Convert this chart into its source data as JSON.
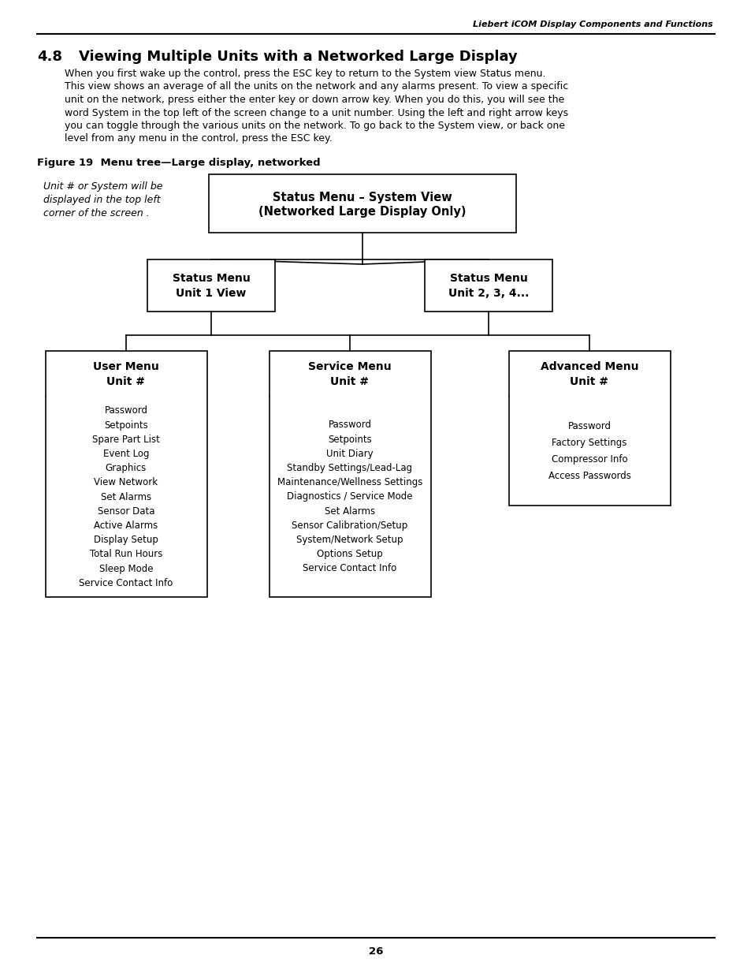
{
  "page_title_italic": "Liebert iCOM Display Components and Functions",
  "section_number": "4.8",
  "section_title": "Viewing Multiple Units with a Networked Large Display",
  "body_lines": [
    "When you first wake up the control, press the ESC key to return to the System view Status menu.",
    "This view shows an average of all the units on the network and any alarms present. To view a specific",
    "unit on the network, press either the enter key or down arrow key. When you do this, you will see the",
    "word System in the top left of the screen change to a unit number. Using the left and right arrow keys",
    "you can toggle through the various units on the network. To go back to the System view, or back one",
    "level from any menu in the control, press the ESC key."
  ],
  "figure_label": "Figure 19  Menu tree—Large display, networked",
  "annotation_line1": "Unit # or System will be",
  "annotation_line2": "displayed in the top left",
  "annotation_line3": "corner of the screen .",
  "root_node_line1": "Status Menu – System View",
  "root_node_line2": "(Networked Large Display Only)",
  "level2_left_line1": "Status Menu",
  "level2_left_line2": "Unit 1 View",
  "level2_right_line1": "Status Menu",
  "level2_right_line2": "Unit 2, 3, 4...",
  "level3_left_title": "User Menu\nUnit #",
  "level3_left_items": "Password\nSetpoints\nSpare Part List\nEvent Log\nGraphics\nView Network\nSet Alarms\nSensor Data\nActive Alarms\nDisplay Setup\nTotal Run Hours\nSleep Mode\nService Contact Info",
  "level3_mid_title": "Service Menu\nUnit #",
  "level3_mid_items": "Password\nSetpoints\nUnit Diary\nStandby Settings/Lead-Lag\nMaintenance/Wellness Settings\nDiagnostics / Service Mode\nSet Alarms\nSensor Calibration/Setup\nSystem/Network Setup\nOptions Setup\nService Contact Info",
  "level3_right_title": "Advanced Menu\nUnit #",
  "level3_right_items": "Password\nFactory Settings\nCompressor Info\nAccess Passwords",
  "page_number": "26",
  "bg_color": "#ffffff",
  "text_color": "#000000",
  "box_edge_color": "#000000"
}
